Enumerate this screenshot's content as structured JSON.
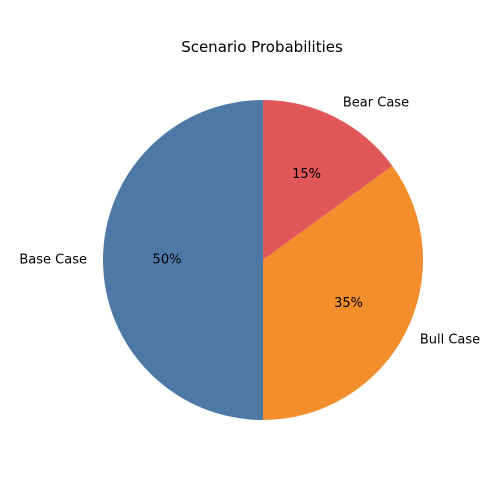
{
  "chart_data": {
    "type": "pie",
    "title": "Scenario Probabilities",
    "slices": [
      {
        "label": "Bear Case",
        "value": 15,
        "pct_label": "15%",
        "color": "#e15759"
      },
      {
        "label": "Bull Case",
        "value": 35,
        "pct_label": "35%",
        "color": "#f28e2b"
      },
      {
        "label": "Base Case",
        "value": 50,
        "pct_label": "50%",
        "color": "#4e79a7"
      }
    ],
    "start_angle_deg": 90,
    "direction": "clockwise",
    "legend": "none"
  }
}
